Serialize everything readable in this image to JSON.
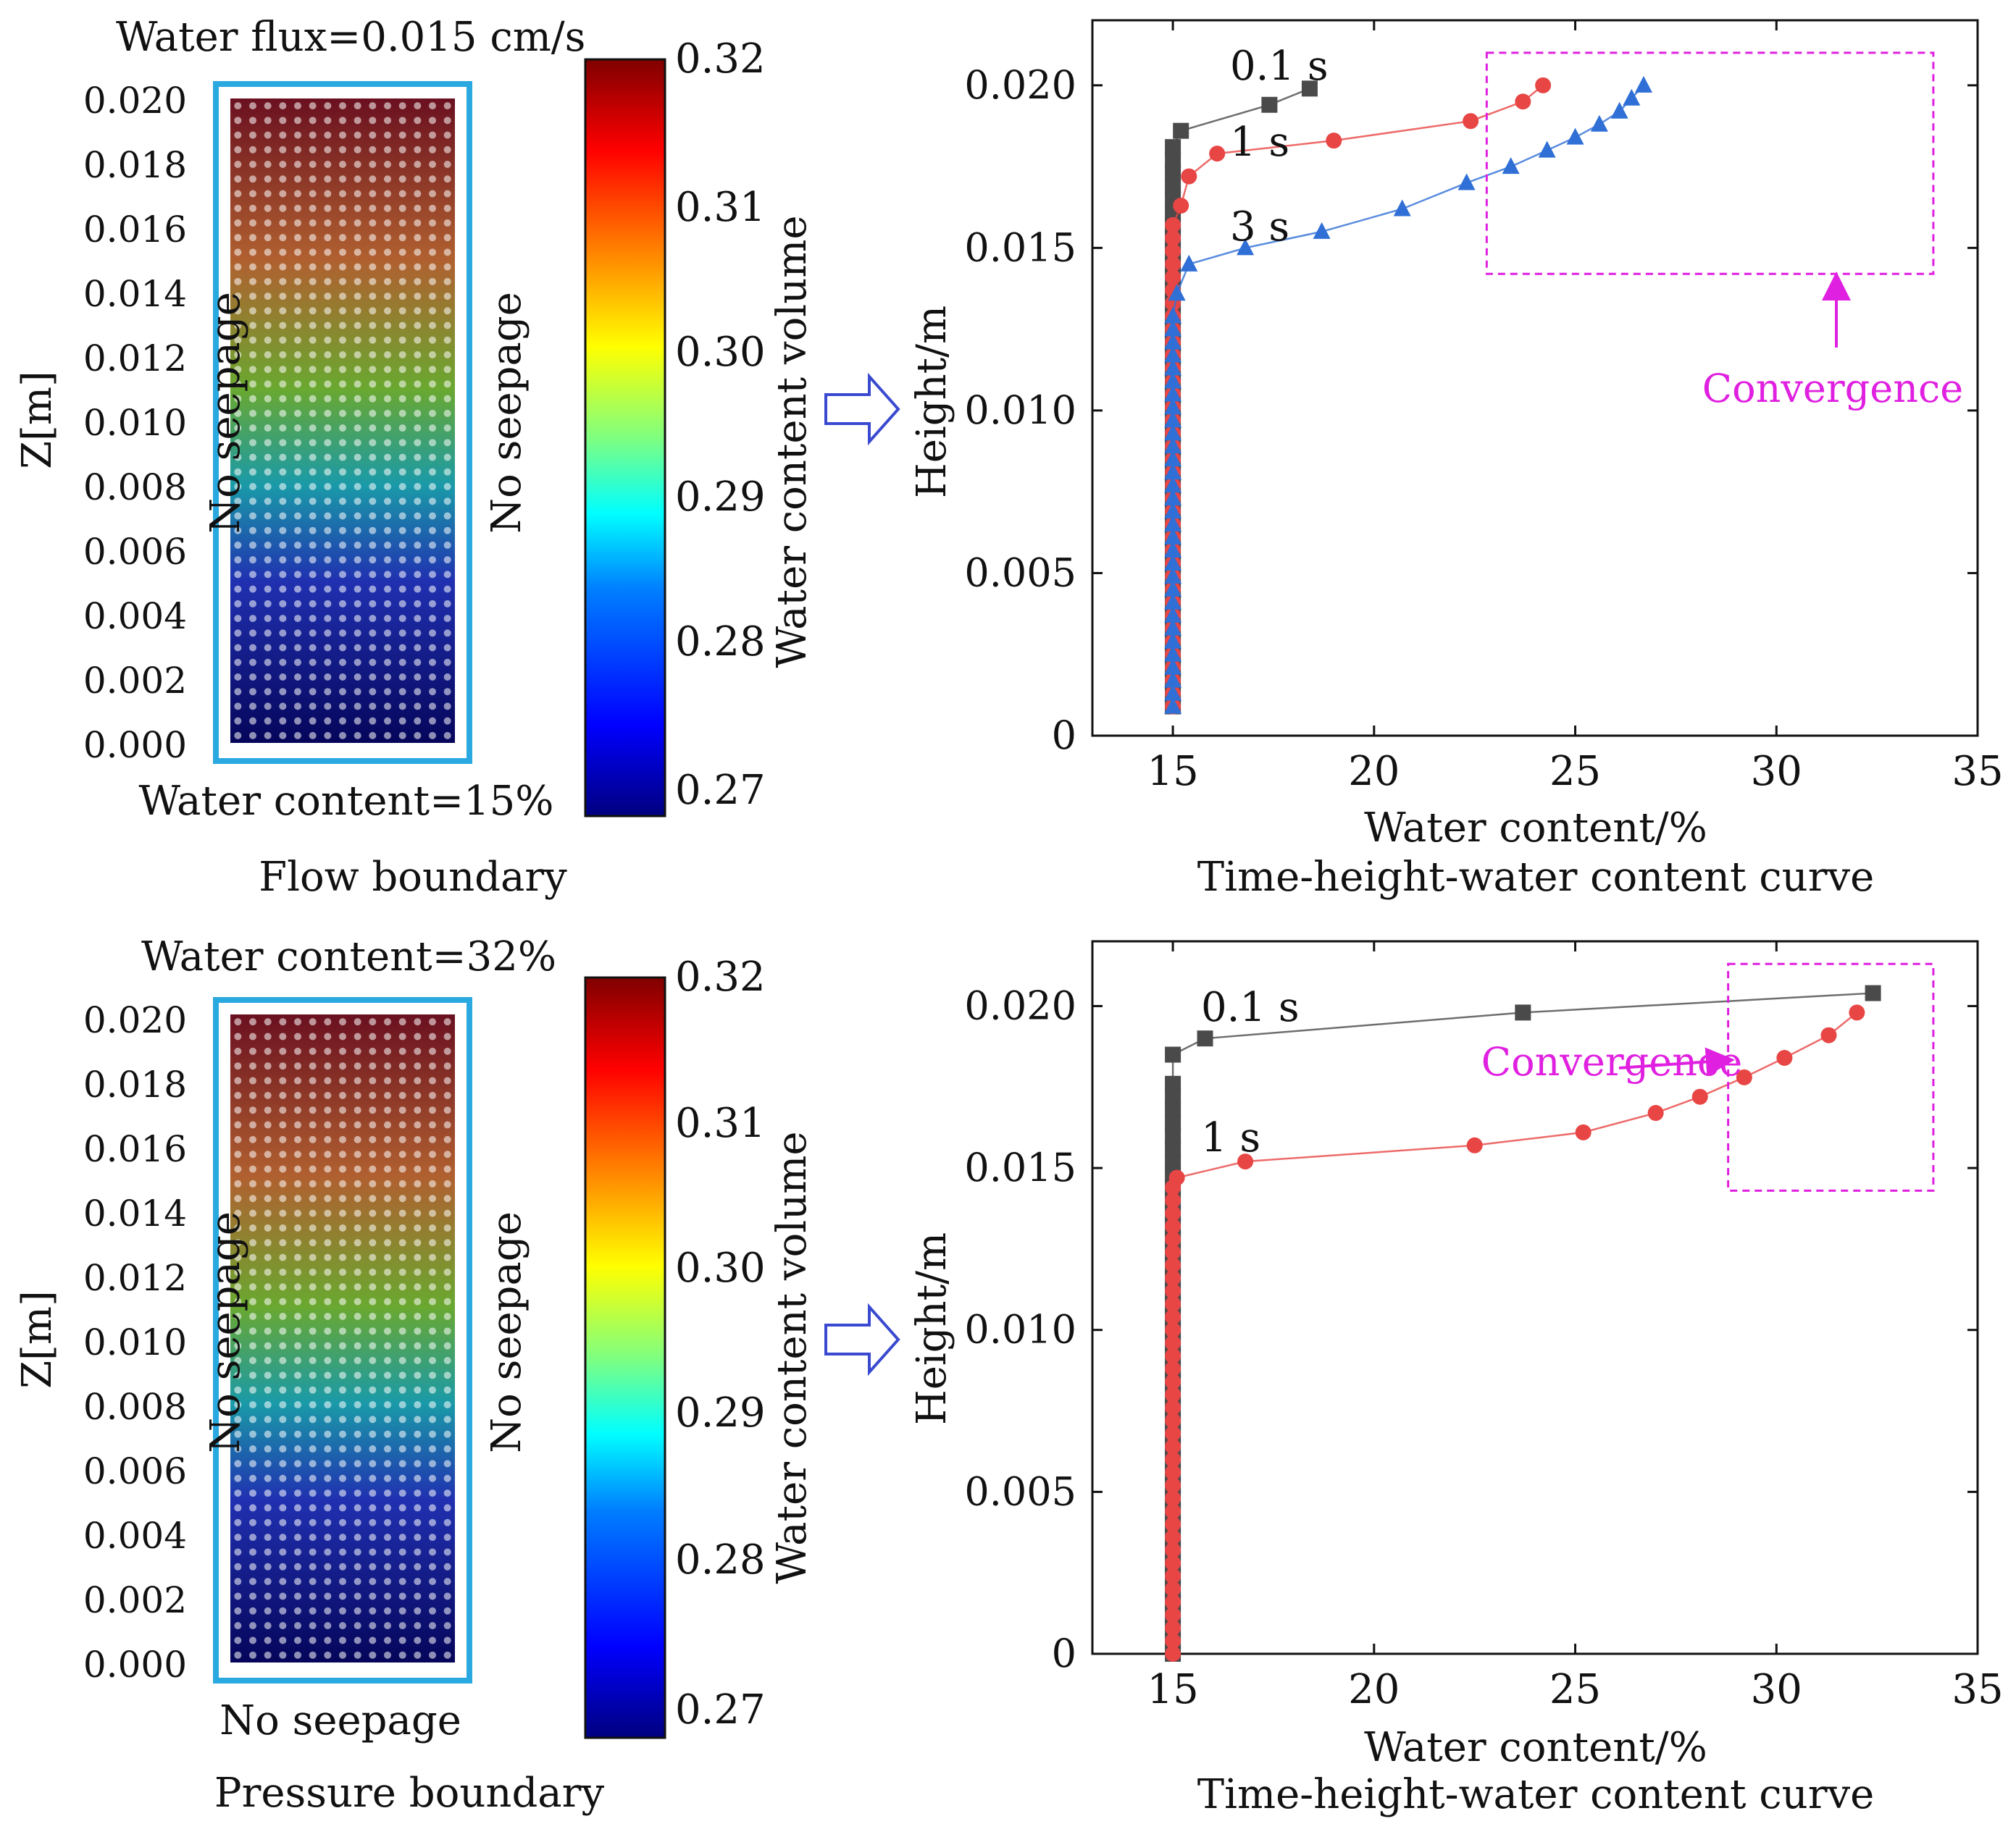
{
  "panels": [
    {
      "top_label": "Water flux=0.015 cm/s",
      "bottom_label": "Water content=15%",
      "left_label": "No seepage",
      "right_label": "No seepage",
      "caption": "Flow boundary",
      "zlabel": "Z[m]",
      "zticks": [
        "0.000",
        "0.002",
        "0.004",
        "0.006",
        "0.008",
        "0.010",
        "0.012",
        "0.014",
        "0.016",
        "0.018",
        "0.020"
      ]
    },
    {
      "top_label": "Water content=32%",
      "bottom_label": "No seepage",
      "left_label": "No seepage",
      "right_label": "No seepage",
      "caption": "Pressure boundary",
      "zlabel": "Z[m]",
      "zticks": [
        "0.000",
        "0.002",
        "0.004",
        "0.006",
        "0.008",
        "0.010",
        "0.012",
        "0.014",
        "0.016",
        "0.018",
        "0.020"
      ]
    }
  ],
  "colorbar": {
    "label": "Water content volume",
    "ticks": [
      "0.27",
      "0.28",
      "0.29",
      "0.30",
      "0.31",
      "0.32"
    ],
    "colors": [
      "#00007f",
      "#0000ff",
      "#007fff",
      "#00ffff",
      "#7fff7f",
      "#ffff00",
      "#ff7f00",
      "#ff0000",
      "#7f0000"
    ]
  },
  "chart_data": [
    {
      "type": "line",
      "title": "Time-height-water content curve",
      "xlabel": "Water content/%",
      "ylabel": "Height/m",
      "xlim": [
        13,
        35
      ],
      "ylim": [
        0,
        0.022
      ],
      "xticks": [
        15,
        20,
        25,
        30,
        35
      ],
      "xtick_labels": [
        "15",
        "20",
        "25",
        "30",
        "35"
      ],
      "yticks": [
        0,
        0.005,
        0.01,
        0.015,
        0.02
      ],
      "ytick_labels": [
        "0",
        "0.005",
        "0.010",
        "0.015",
        "0.020"
      ],
      "annotation": "Convergence",
      "series": [
        {
          "name": "0.1 s",
          "color": "#4a4a4a",
          "marker": "square",
          "x": [
            15,
            15,
            15,
            15,
            15,
            15,
            15,
            15,
            15,
            15,
            15,
            15,
            15,
            15,
            15,
            15,
            15,
            15,
            15,
            15,
            15,
            15,
            15,
            15,
            15,
            15,
            15,
            15,
            15,
            15,
            15,
            15,
            15,
            15,
            15,
            15,
            15,
            15,
            15,
            15,
            15,
            15,
            15,
            15,
            15.2,
            17.4,
            18.4
          ],
          "y": [
            0.0009,
            0.0013,
            0.0017,
            0.0021,
            0.0025,
            0.0029,
            0.0033,
            0.0037,
            0.0041,
            0.0045,
            0.0049,
            0.0053,
            0.0057,
            0.0061,
            0.0065,
            0.0069,
            0.0073,
            0.0077,
            0.0081,
            0.0085,
            0.0089,
            0.0093,
            0.0097,
            0.0101,
            0.0105,
            0.0109,
            0.0113,
            0.0117,
            0.0121,
            0.0125,
            0.0129,
            0.0133,
            0.0137,
            0.0141,
            0.0145,
            0.0149,
            0.0153,
            0.0157,
            0.0161,
            0.0165,
            0.0169,
            0.0173,
            0.0177,
            0.0181,
            0.0186,
            0.0194,
            0.0199
          ]
        },
        {
          "name": "1 s",
          "color": "#e84545",
          "marker": "circle",
          "x": [
            15,
            15,
            15,
            15,
            15,
            15,
            15,
            15,
            15,
            15,
            15,
            15,
            15,
            15,
            15,
            15,
            15,
            15,
            15,
            15,
            15,
            15,
            15,
            15,
            15,
            15,
            15,
            15,
            15,
            15,
            15,
            15,
            15,
            15,
            15,
            15,
            15,
            15,
            15.2,
            15.4,
            16.1,
            19.0,
            22.4,
            23.7,
            24.2
          ],
          "y": [
            0.0009,
            0.0013,
            0.0017,
            0.0021,
            0.0025,
            0.0029,
            0.0033,
            0.0037,
            0.0041,
            0.0045,
            0.0049,
            0.0053,
            0.0057,
            0.0061,
            0.0065,
            0.0069,
            0.0073,
            0.0077,
            0.0081,
            0.0085,
            0.0089,
            0.0093,
            0.0097,
            0.0101,
            0.0105,
            0.0109,
            0.0113,
            0.0117,
            0.0121,
            0.0125,
            0.0129,
            0.0133,
            0.0137,
            0.0141,
            0.0145,
            0.0149,
            0.0153,
            0.0157,
            0.0163,
            0.0172,
            0.0179,
            0.0183,
            0.0189,
            0.0195,
            0.02
          ]
        },
        {
          "name": "3 s",
          "color": "#2f6fd6",
          "marker": "triangle-up",
          "x": [
            15,
            15,
            15,
            15,
            15,
            15,
            15,
            15,
            15,
            15,
            15,
            15,
            15,
            15,
            15,
            15,
            15,
            15,
            15,
            15,
            15,
            15,
            15,
            15,
            15,
            15,
            15,
            15,
            15,
            15,
            15,
            15.1,
            15.4,
            16.8,
            18.7,
            20.7,
            22.3,
            23.4,
            24.3,
            25.0,
            25.6,
            26.1,
            26.4,
            26.7
          ],
          "y": [
            0.0009,
            0.0013,
            0.0017,
            0.0021,
            0.0025,
            0.0029,
            0.0033,
            0.0037,
            0.0041,
            0.0045,
            0.0049,
            0.0053,
            0.0057,
            0.0061,
            0.0065,
            0.0069,
            0.0073,
            0.0077,
            0.0081,
            0.0085,
            0.0089,
            0.0093,
            0.0097,
            0.0101,
            0.0105,
            0.0109,
            0.0113,
            0.0117,
            0.0121,
            0.0125,
            0.0129,
            0.0136,
            0.0145,
            0.015,
            0.0155,
            0.0162,
            0.017,
            0.0175,
            0.018,
            0.0184,
            0.0188,
            0.0192,
            0.0196,
            0.02
          ]
        }
      ]
    },
    {
      "type": "line",
      "title": "Time-height-water content curve",
      "xlabel": "Water content/%",
      "ylabel": "Height/m",
      "xlim": [
        13,
        35
      ],
      "ylim": [
        0,
        0.022
      ],
      "xticks": [
        15,
        20,
        25,
        30,
        35
      ],
      "xtick_labels": [
        "15",
        "20",
        "25",
        "30",
        "35"
      ],
      "yticks": [
        0,
        0.005,
        0.01,
        0.015,
        0.02
      ],
      "ytick_labels": [
        "0",
        "0.005",
        "0.010",
        "0.015",
        "0.020"
      ],
      "annotation": "Convergence",
      "series": [
        {
          "name": "0.1 s",
          "color": "#4a4a4a",
          "marker": "square",
          "x": [
            15,
            15,
            15,
            15,
            15,
            15,
            15,
            15,
            15,
            15,
            15,
            15,
            15,
            15,
            15,
            15,
            15,
            15,
            15,
            15,
            15,
            15,
            15,
            15,
            15,
            15,
            15,
            15,
            15,
            15,
            15,
            15,
            15,
            15,
            15,
            15,
            15,
            15,
            15,
            15,
            15,
            15,
            15,
            15,
            15,
            15,
            15.8,
            23.7,
            32.4
          ],
          "y": [
            0.0,
            0.0004,
            0.0008,
            0.0012,
            0.0016,
            0.002,
            0.0024,
            0.0028,
            0.0032,
            0.0036,
            0.004,
            0.0044,
            0.0048,
            0.0052,
            0.0056,
            0.006,
            0.0064,
            0.0068,
            0.0072,
            0.0076,
            0.008,
            0.0084,
            0.0088,
            0.0092,
            0.0096,
            0.01,
            0.0104,
            0.0108,
            0.0112,
            0.0116,
            0.012,
            0.0124,
            0.0128,
            0.0132,
            0.0136,
            0.014,
            0.0144,
            0.0148,
            0.0152,
            0.0156,
            0.016,
            0.0164,
            0.0168,
            0.0172,
            0.0176,
            0.0185,
            0.019,
            0.0198,
            0.0204
          ]
        },
        {
          "name": "1 s",
          "color": "#e84545",
          "marker": "circle",
          "x": [
            15,
            15,
            15,
            15,
            15,
            15,
            15,
            15,
            15,
            15,
            15,
            15,
            15,
            15,
            15,
            15,
            15,
            15,
            15,
            15,
            15,
            15,
            15,
            15,
            15,
            15,
            15,
            15,
            15,
            15,
            15,
            15,
            15,
            15,
            15,
            15,
            15,
            15.1,
            16.8,
            22.5,
            25.2,
            27.0,
            28.1,
            29.2,
            30.2,
            31.3,
            32.0
          ],
          "y": [
            0.0,
            0.0004,
            0.0008,
            0.0012,
            0.0016,
            0.002,
            0.0024,
            0.0028,
            0.0032,
            0.0036,
            0.004,
            0.0044,
            0.0048,
            0.0052,
            0.0056,
            0.006,
            0.0064,
            0.0068,
            0.0072,
            0.0076,
            0.008,
            0.0084,
            0.0088,
            0.0092,
            0.0096,
            0.01,
            0.0104,
            0.0108,
            0.0112,
            0.0116,
            0.012,
            0.0124,
            0.0128,
            0.0132,
            0.0136,
            0.014,
            0.0144,
            0.0147,
            0.0152,
            0.0157,
            0.0161,
            0.0167,
            0.0172,
            0.0178,
            0.0184,
            0.0191,
            0.0198
          ]
        }
      ]
    }
  ]
}
